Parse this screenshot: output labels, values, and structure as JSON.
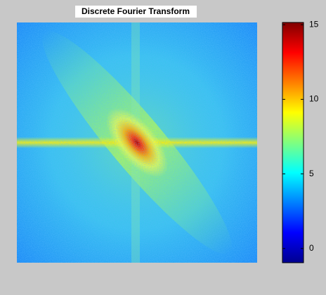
{
  "chart_data": {
    "type": "image",
    "title": "Discrete Fourier Transform",
    "colorbar": {
      "ylim": [
        -0.95,
        15.15
      ],
      "yticks": [
        0,
        5,
        10,
        15
      ]
    }
  }
}
